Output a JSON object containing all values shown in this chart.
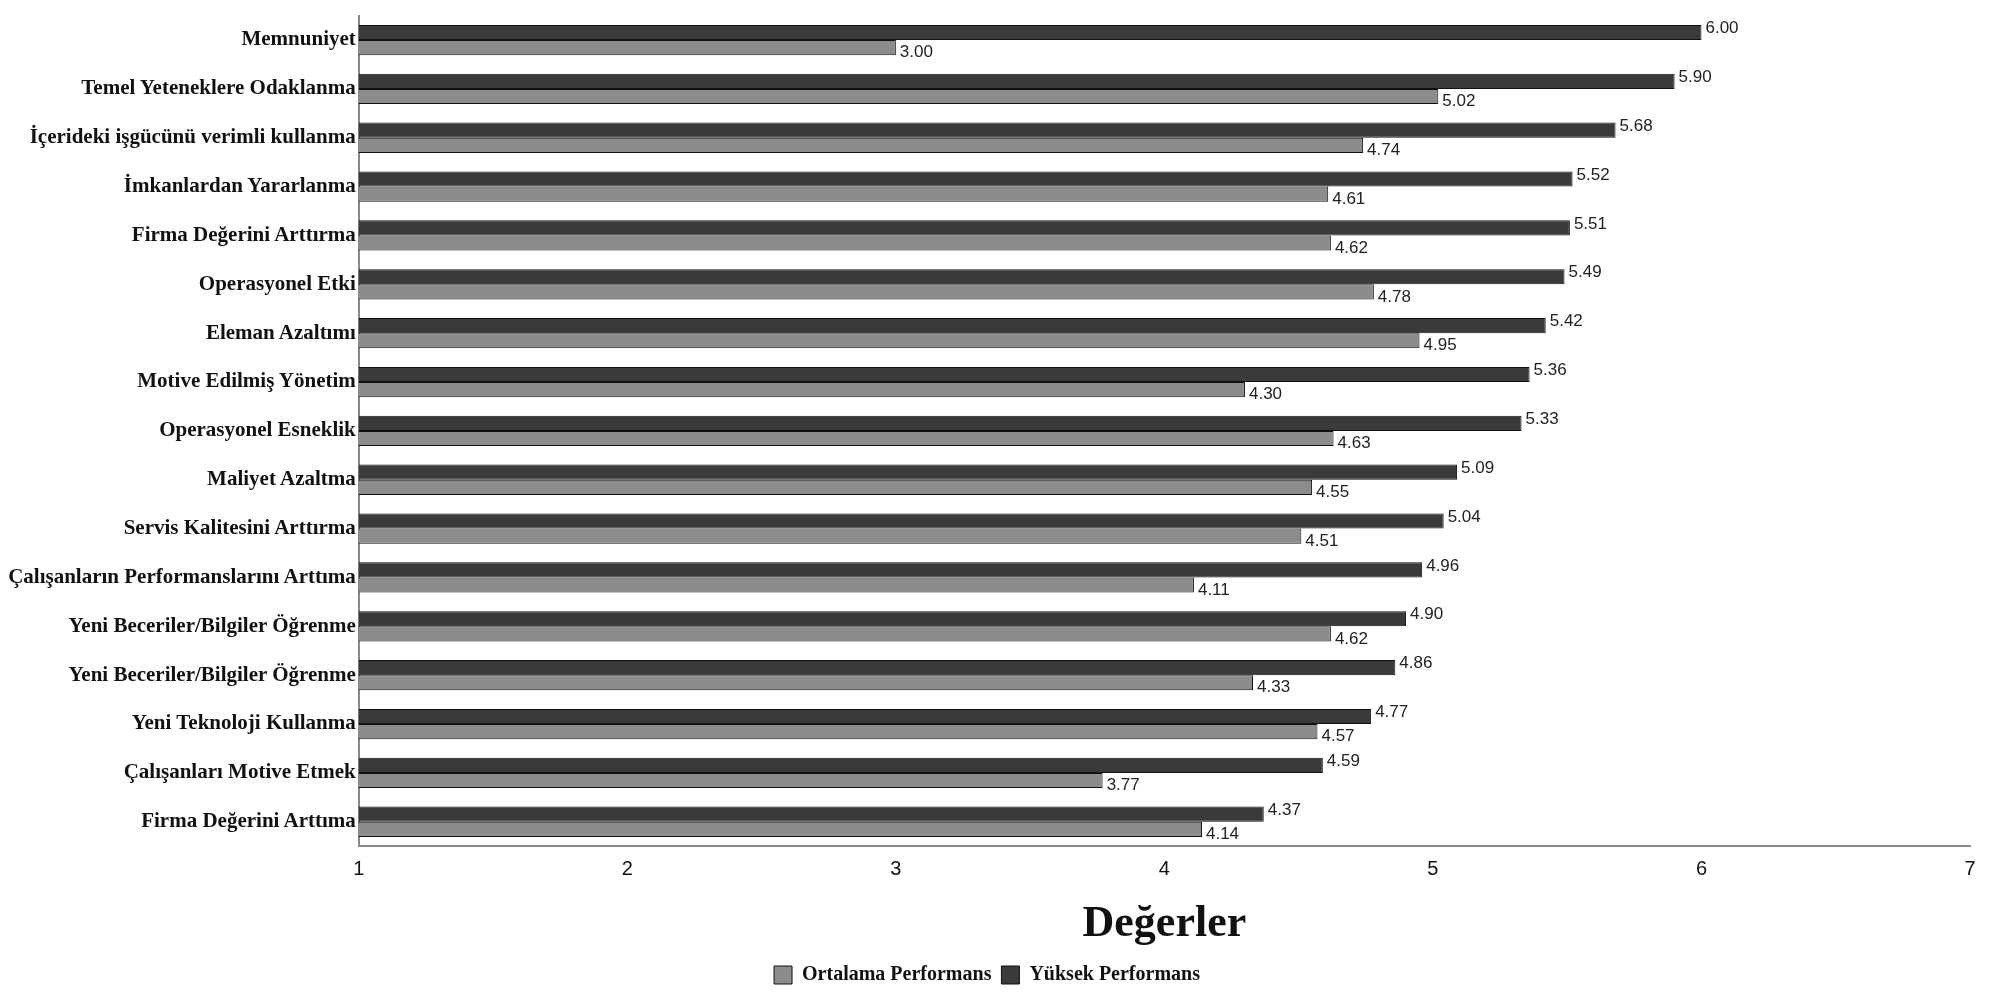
{
  "chart_data": {
    "type": "bar",
    "orientation": "horizontal",
    "xlabel": "Değerler",
    "categories": [
      "Memnuniyet",
      "Temel Yeteneklere Odaklanma",
      "İçerideki işgücünü verimli kullanma",
      "İmkanlardan Yararlanma",
      "Firma Değerini Arttırma",
      "Operasyonel Etki",
      "Eleman Azaltımı",
      "Motive Edilmiş Yönetim",
      "Operasyonel Esneklik",
      "Maliyet Azaltma",
      "Servis Kalitesini Arttırma",
      "Çalışanların Performanslarını Arttıma",
      "Yeni Beceriler/Bilgiler Öğrenme",
      "Yeni Beceriler/Bilgiler Öğrenme",
      "Yeni Teknoloji Kullanma",
      "Çalışanları Motive Etmek",
      "Firma Değerini Arttıma"
    ],
    "series": [
      {
        "name": "Ortalama Performans",
        "color": "#8c8c8c",
        "values": [
          3.0,
          5.02,
          4.74,
          4.61,
          4.62,
          4.78,
          4.95,
          4.3,
          4.63,
          4.55,
          4.51,
          4.11,
          4.62,
          4.33,
          4.57,
          3.77,
          4.14
        ],
        "value_labels": [
          "3.00",
          "5.02",
          "4.74",
          "4.61",
          "4.62",
          "4.78",
          "4.95",
          "4.30",
          "4.63",
          "4.55",
          "4.51",
          "4.11",
          "4.62",
          "4.33",
          "4.57",
          "3.77",
          "4.14"
        ]
      },
      {
        "name": "Yüksek Performans",
        "color": "#3a3a3a",
        "values": [
          6.0,
          5.9,
          5.68,
          5.52,
          5.51,
          5.49,
          5.42,
          5.36,
          5.33,
          5.09,
          5.04,
          4.96,
          4.9,
          4.86,
          4.77,
          4.59,
          4.37
        ],
        "value_labels": [
          "6.00",
          "5.90",
          "5.68",
          "5.52",
          "5.51",
          "5.49",
          "5.42",
          "5.36",
          "5.33",
          "5.09",
          "5.04",
          "4.96",
          "4.90",
          "4.86",
          "4.77",
          "4.59",
          "4.37"
        ]
      }
    ],
    "xlim": [
      1,
      7
    ],
    "xticks": [
      1,
      2,
      3,
      4,
      5,
      6,
      7
    ],
    "grid": false,
    "legend": "bottom"
  }
}
